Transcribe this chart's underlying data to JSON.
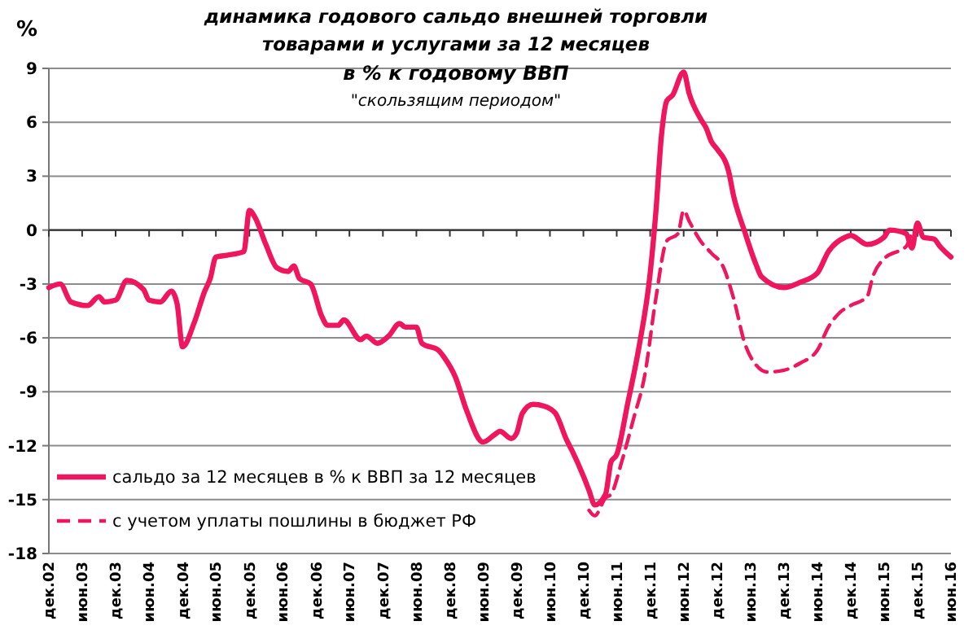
{
  "chart_data": {
    "type": "line",
    "title": "динамика годового сальдо внешней торговли товарами и услугами за 12 месяцев",
    "subtitle": "в % к годовому ВВП",
    "annotations": [
      "\"скользящим периодом\""
    ],
    "ylabel": "%",
    "xlim": [
      "2002-12",
      "2016-06"
    ],
    "xticks": [
      {
        "value": "2002-12",
        "label": "дек.02"
      },
      {
        "value": "2003-06",
        "label": "июн.03"
      },
      {
        "value": "2003-12",
        "label": "дек.03"
      },
      {
        "value": "2004-06",
        "label": "июн.04"
      },
      {
        "value": "2004-12",
        "label": "дек.04"
      },
      {
        "value": "2005-06",
        "label": "июн.05"
      },
      {
        "value": "2005-12",
        "label": "дек.05"
      },
      {
        "value": "2006-06",
        "label": "июн.06"
      },
      {
        "value": "2006-12",
        "label": "дек.06"
      },
      {
        "value": "2007-06",
        "label": "июн.07"
      },
      {
        "value": "2007-12",
        "label": "дек.07"
      },
      {
        "value": "2008-06",
        "label": "июн.08"
      },
      {
        "value": "2008-12",
        "label": "дек.08"
      },
      {
        "value": "2009-06",
        "label": "июн.09"
      },
      {
        "value": "2009-12",
        "label": "дек.09"
      },
      {
        "value": "2010-06",
        "label": "июн.10"
      },
      {
        "value": "2010-12",
        "label": "дек.10"
      },
      {
        "value": "2011-06",
        "label": "июн.11"
      },
      {
        "value": "2011-12",
        "label": "дек.11"
      },
      {
        "value": "2012-06",
        "label": "июн.12"
      },
      {
        "value": "2012-12",
        "label": "дек.12"
      },
      {
        "value": "2013-06",
        "label": "июн.13"
      },
      {
        "value": "2013-12",
        "label": "дек.13"
      },
      {
        "value": "2014-06",
        "label": "июн.14"
      },
      {
        "value": "2014-12",
        "label": "дек.14"
      },
      {
        "value": "2015-06",
        "label": "июн.15"
      },
      {
        "value": "2015-12",
        "label": "дек.15"
      },
      {
        "value": "2016-06",
        "label": "июн.16"
      }
    ],
    "ylim": [
      -18,
      9
    ],
    "yticks": [
      -18,
      -15,
      -12,
      -9,
      -6,
      -3,
      0,
      3,
      6,
      9
    ],
    "grid": "y",
    "legend": "bottom left",
    "series": [
      {
        "name": "сальдо за 12 месяцев в % к ВВП за 12 месяцев",
        "color": "#f0165e",
        "line_style": "solid",
        "x": [
          "2002-12",
          "2003-02",
          "2003-04",
          "2003-07",
          "2003-09",
          "2003-10",
          "2003-12",
          "2004-02",
          "2004-05",
          "2004-06",
          "2004-08",
          "2004-10",
          "2004-11",
          "2004-12",
          "2005-02",
          "2005-04",
          "2005-05",
          "2005-06",
          "2005-08",
          "2005-11",
          "2005-12",
          "2006-01",
          "2006-03",
          "2006-05",
          "2006-07",
          "2006-08",
          "2006-09",
          "2006-11",
          "2007-01",
          "2007-02",
          "2007-04",
          "2007-05",
          "2007-08",
          "2007-09",
          "2007-11",
          "2008-01",
          "2008-03",
          "2008-04",
          "2008-06",
          "2008-07",
          "2008-10",
          "2008-11",
          "2009-01",
          "2009-03",
          "2009-06",
          "2009-08",
          "2009-09",
          "2009-11",
          "2009-12",
          "2010-01",
          "2010-03",
          "2010-05",
          "2010-07",
          "2010-09",
          "2010-10",
          "2010-12",
          "2011-01",
          "2011-02",
          "2011-04",
          "2011-05",
          "2011-06",
          "2011-08",
          "2011-10",
          "2011-12",
          "2012-01",
          "2012-02",
          "2012-03",
          "2012-04",
          "2012-06",
          "2012-07",
          "2012-09",
          "2012-10",
          "2012-11",
          "2012-12",
          "2013-02",
          "2013-03",
          "2013-05",
          "2013-07",
          "2013-08",
          "2013-12",
          "2014-03",
          "2014-06",
          "2014-08",
          "2014-11",
          "2014-12",
          "2015-03",
          "2015-06",
          "2015-07",
          "2015-10",
          "2015-11",
          "2015-12",
          "2016-01",
          "2016-03",
          "2016-04",
          "2016-06"
        ],
        "values": [
          -3.2,
          -3.0,
          -4.0,
          -4.2,
          -3.7,
          -4.0,
          -3.9,
          -2.8,
          -3.3,
          -3.9,
          -4.0,
          -3.4,
          -4.1,
          -6.5,
          -5.2,
          -3.4,
          -2.7,
          -1.5,
          -1.4,
          -1.2,
          1.1,
          0.7,
          -0.8,
          -2.1,
          -2.3,
          -2.0,
          -2.7,
          -3.0,
          -4.8,
          -5.3,
          -5.3,
          -5.0,
          -6.1,
          -5.9,
          -6.3,
          -5.9,
          -5.2,
          -5.4,
          -5.4,
          -6.3,
          -6.7,
          -7.1,
          -8.2,
          -10.0,
          -11.8,
          -11.4,
          -11.2,
          -11.6,
          -11.3,
          -10.2,
          -9.7,
          -9.8,
          -10.2,
          -11.7,
          -12.3,
          -13.7,
          -14.5,
          -15.3,
          -14.7,
          -12.9,
          -12.5,
          -9.6,
          -6.5,
          -2.4,
          1.0,
          5.3,
          7.2,
          7.5,
          8.8,
          7.6,
          6.2,
          5.7,
          4.9,
          4.5,
          3.3,
          1.9,
          -0.1,
          -1.9,
          -2.6,
          -3.2,
          -2.9,
          -2.4,
          -1.2,
          -0.4,
          -0.3,
          -0.8,
          -0.4,
          0.0,
          -0.2,
          -1.0,
          0.4,
          -0.4,
          -0.5,
          -0.9,
          -1.5
        ]
      },
      {
        "name": "с учетом уплаты пошлины в бюджет РФ",
        "color": "#f0165e",
        "line_style": "dashed",
        "x": [
          "2011-01",
          "2011-02",
          "2011-04",
          "2011-05",
          "2011-07",
          "2011-09",
          "2011-11",
          "2012-01",
          "2012-03",
          "2012-05",
          "2012-06",
          "2012-07",
          "2012-09",
          "2012-11",
          "2013-01",
          "2013-03",
          "2013-05",
          "2013-07",
          "2013-09",
          "2013-12",
          "2014-03",
          "2014-06",
          "2014-08",
          "2014-10",
          "2014-12",
          "2015-03",
          "2015-04",
          "2015-06",
          "2015-09",
          "2015-10",
          "2015-11"
        ],
        "values": [
          -15.6,
          -15.9,
          -14.9,
          -14.7,
          -12.8,
          -10.5,
          -8.1,
          -3.8,
          -0.6,
          -0.2,
          1.1,
          0.5,
          -0.6,
          -1.3,
          -2.0,
          -3.8,
          -6.3,
          -7.5,
          -7.9,
          -7.8,
          -7.4,
          -6.7,
          -5.4,
          -4.6,
          -4.2,
          -3.7,
          -2.6,
          -1.6,
          -1.1,
          -0.9,
          -0.1
        ]
      }
    ]
  }
}
